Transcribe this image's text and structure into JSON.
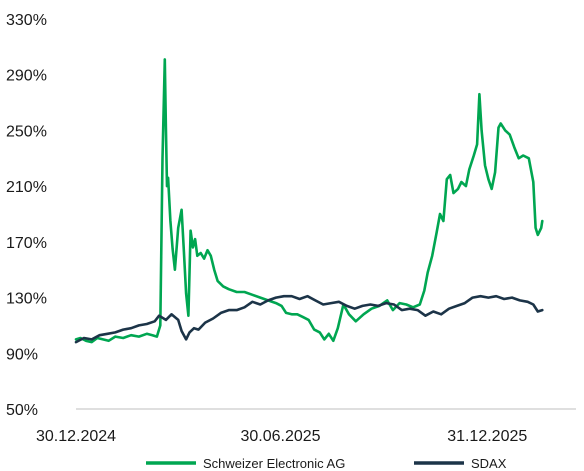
{
  "chart_data": {
    "type": "line",
    "title": "",
    "xlabel": "",
    "ylabel": "",
    "ylim": [
      50,
      330
    ],
    "yticks": [
      "330%",
      "290%",
      "250%",
      "210%",
      "170%",
      "130%",
      "90%",
      "50%"
    ],
    "ytick_values": [
      330,
      290,
      250,
      210,
      170,
      130,
      90,
      50
    ],
    "xlim": [
      "2024-12-30",
      "2026-03-20"
    ],
    "xticks": [
      "30.12.2024",
      "30.06.2025",
      "31.12.2025"
    ],
    "xtick_dates": [
      "2024-12-30",
      "2025-06-30",
      "2025-12-31"
    ],
    "grid": false,
    "legend": "bottom",
    "series": [
      {
        "name": "Schweizer Electronic AG",
        "color": "#00a651",
        "points": [
          [
            "2024-12-30",
            100
          ],
          [
            "2025-01-03",
            101
          ],
          [
            "2025-01-08",
            99
          ],
          [
            "2025-01-13",
            98
          ],
          [
            "2025-01-18",
            101
          ],
          [
            "2025-01-23",
            100
          ],
          [
            "2025-01-28",
            99
          ],
          [
            "2025-02-03",
            102
          ],
          [
            "2025-02-10",
            101
          ],
          [
            "2025-02-17",
            103
          ],
          [
            "2025-02-24",
            102
          ],
          [
            "2025-03-03",
            104
          ],
          [
            "2025-03-08",
            103
          ],
          [
            "2025-03-12",
            102
          ],
          [
            "2025-03-15",
            110
          ],
          [
            "2025-03-17",
            230
          ],
          [
            "2025-03-19",
            301
          ],
          [
            "2025-03-20",
            252
          ],
          [
            "2025-03-21",
            210
          ],
          [
            "2025-03-22",
            216
          ],
          [
            "2025-03-24",
            185
          ],
          [
            "2025-03-26",
            165
          ],
          [
            "2025-03-28",
            150
          ],
          [
            "2025-03-31",
            180
          ],
          [
            "2025-04-03",
            193
          ],
          [
            "2025-04-05",
            163
          ],
          [
            "2025-04-07",
            133
          ],
          [
            "2025-04-09",
            117
          ],
          [
            "2025-04-11",
            178
          ],
          [
            "2025-04-13",
            166
          ],
          [
            "2025-04-15",
            172
          ],
          [
            "2025-04-17",
            160
          ],
          [
            "2025-04-20",
            162
          ],
          [
            "2025-04-23",
            158
          ],
          [
            "2025-04-26",
            164
          ],
          [
            "2025-04-29",
            160
          ],
          [
            "2025-05-02",
            150
          ],
          [
            "2025-05-05",
            142
          ],
          [
            "2025-05-10",
            138
          ],
          [
            "2025-05-15",
            136
          ],
          [
            "2025-05-22",
            134
          ],
          [
            "2025-05-29",
            134
          ],
          [
            "2025-06-05",
            132
          ],
          [
            "2025-06-12",
            130
          ],
          [
            "2025-06-19",
            128
          ],
          [
            "2025-06-26",
            126
          ],
          [
            "2025-07-01",
            124
          ],
          [
            "2025-07-05",
            119
          ],
          [
            "2025-07-10",
            118
          ],
          [
            "2025-07-15",
            118
          ],
          [
            "2025-07-20",
            116
          ],
          [
            "2025-07-25",
            114
          ],
          [
            "2025-07-30",
            107
          ],
          [
            "2025-08-04",
            105
          ],
          [
            "2025-08-08",
            100
          ],
          [
            "2025-08-12",
            104
          ],
          [
            "2025-08-16",
            99
          ],
          [
            "2025-08-20",
            108
          ],
          [
            "2025-08-25",
            125
          ],
          [
            "2025-08-30",
            118
          ],
          [
            "2025-09-05",
            113
          ],
          [
            "2025-09-12",
            118
          ],
          [
            "2025-09-19",
            122
          ],
          [
            "2025-09-26",
            124
          ],
          [
            "2025-10-03",
            128
          ],
          [
            "2025-10-08",
            121
          ],
          [
            "2025-10-14",
            126
          ],
          [
            "2025-10-20",
            125
          ],
          [
            "2025-10-26",
            123
          ],
          [
            "2025-11-01",
            125
          ],
          [
            "2025-11-05",
            135
          ],
          [
            "2025-11-08",
            148
          ],
          [
            "2025-11-12",
            160
          ],
          [
            "2025-11-16",
            177
          ],
          [
            "2025-11-19",
            190
          ],
          [
            "2025-11-22",
            185
          ],
          [
            "2025-11-25",
            215
          ],
          [
            "2025-11-28",
            218
          ],
          [
            "2025-12-01",
            205
          ],
          [
            "2025-12-05",
            208
          ],
          [
            "2025-12-08",
            213
          ],
          [
            "2025-12-12",
            210
          ],
          [
            "2025-12-15",
            222
          ],
          [
            "2025-12-19",
            232
          ],
          [
            "2025-12-22",
            240
          ],
          [
            "2025-12-24",
            276
          ],
          [
            "2025-12-26",
            250
          ],
          [
            "2025-12-29",
            225
          ],
          [
            "2026-01-01",
            215
          ],
          [
            "2026-01-04",
            208
          ],
          [
            "2026-01-07",
            220
          ],
          [
            "2026-01-10",
            252
          ],
          [
            "2026-01-12",
            255
          ],
          [
            "2026-01-16",
            250
          ],
          [
            "2026-01-20",
            247
          ],
          [
            "2026-01-24",
            238
          ],
          [
            "2026-01-28",
            230
          ],
          [
            "2026-02-01",
            232
          ],
          [
            "2026-02-06",
            230
          ],
          [
            "2026-02-10",
            213
          ],
          [
            "2026-02-12",
            180
          ],
          [
            "2026-02-14",
            175
          ],
          [
            "2026-02-17",
            180
          ],
          [
            "2026-02-18",
            185
          ]
        ]
      },
      {
        "name": "SDAX",
        "color": "#1c3448",
        "points": [
          [
            "2024-12-30",
            98
          ],
          [
            "2025-01-06",
            101
          ],
          [
            "2025-01-13",
            100
          ],
          [
            "2025-01-20",
            103
          ],
          [
            "2025-01-27",
            104
          ],
          [
            "2025-02-03",
            105
          ],
          [
            "2025-02-10",
            107
          ],
          [
            "2025-02-17",
            108
          ],
          [
            "2025-02-24",
            110
          ],
          [
            "2025-03-03",
            111
          ],
          [
            "2025-03-10",
            113
          ],
          [
            "2025-03-14",
            117
          ],
          [
            "2025-03-20",
            114
          ],
          [
            "2025-03-25",
            118
          ],
          [
            "2025-03-31",
            114
          ],
          [
            "2025-04-03",
            106
          ],
          [
            "2025-04-07",
            100
          ],
          [
            "2025-04-10",
            105
          ],
          [
            "2025-04-14",
            108
          ],
          [
            "2025-04-18",
            107
          ],
          [
            "2025-04-24",
            112
          ],
          [
            "2025-05-01",
            115
          ],
          [
            "2025-05-08",
            119
          ],
          [
            "2025-05-15",
            121
          ],
          [
            "2025-05-22",
            121
          ],
          [
            "2025-05-29",
            123
          ],
          [
            "2025-06-05",
            127
          ],
          [
            "2025-06-12",
            125
          ],
          [
            "2025-06-19",
            128
          ],
          [
            "2025-06-26",
            130
          ],
          [
            "2025-07-03",
            131
          ],
          [
            "2025-07-10",
            131
          ],
          [
            "2025-07-17",
            129
          ],
          [
            "2025-07-24",
            131
          ],
          [
            "2025-07-31",
            128
          ],
          [
            "2025-08-07",
            125
          ],
          [
            "2025-08-14",
            126
          ],
          [
            "2025-08-21",
            127
          ],
          [
            "2025-08-28",
            124
          ],
          [
            "2025-09-04",
            122
          ],
          [
            "2025-09-11",
            124
          ],
          [
            "2025-09-18",
            125
          ],
          [
            "2025-09-25",
            124
          ],
          [
            "2025-10-02",
            126
          ],
          [
            "2025-10-09",
            125
          ],
          [
            "2025-10-16",
            121
          ],
          [
            "2025-10-23",
            122
          ],
          [
            "2025-10-30",
            121
          ],
          [
            "2025-11-06",
            117
          ],
          [
            "2025-11-13",
            120
          ],
          [
            "2025-11-20",
            118
          ],
          [
            "2025-11-27",
            122
          ],
          [
            "2025-12-04",
            124
          ],
          [
            "2025-12-11",
            126
          ],
          [
            "2025-12-18",
            130
          ],
          [
            "2025-12-25",
            131
          ],
          [
            "2026-01-01",
            130
          ],
          [
            "2026-01-08",
            131
          ],
          [
            "2026-01-15",
            129
          ],
          [
            "2026-01-22",
            130
          ],
          [
            "2026-01-29",
            128
          ],
          [
            "2026-02-05",
            127
          ],
          [
            "2026-02-10",
            125
          ],
          [
            "2026-02-14",
            120
          ],
          [
            "2026-02-18",
            121
          ]
        ]
      }
    ]
  }
}
